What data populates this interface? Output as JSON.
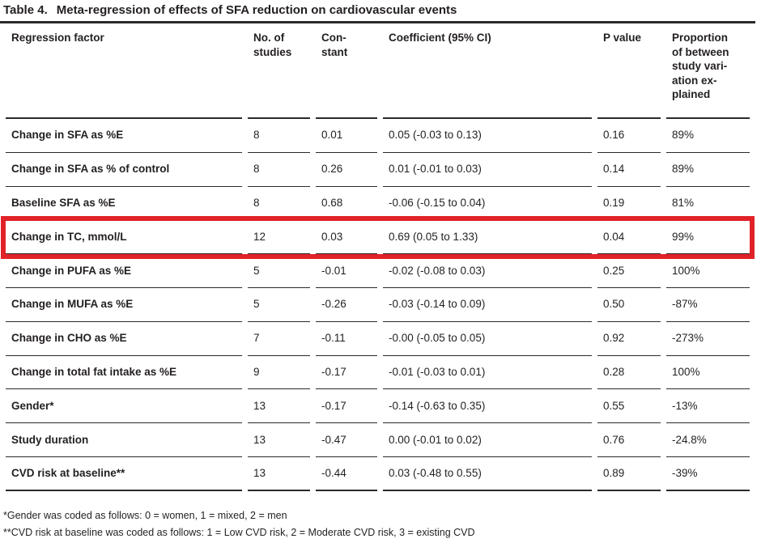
{
  "title": {
    "label": "Table 4.",
    "text": "Meta-regression of effects of SFA reduction on cardiovascular events"
  },
  "table": {
    "headers": [
      "Regression factor",
      "No. of\nstudies",
      "Con-\nstant",
      "Coefficient (95% CI)",
      "P value",
      "Proportion\nof between\nstudy vari-\nation ex-\nplained"
    ],
    "rows": [
      {
        "factor": "Change in SFA as %E",
        "studies": "8",
        "constant": "0.01",
        "coefficient": "0.05 (-0.03 to 0.13)",
        "p": "0.16",
        "variation": "89%",
        "highlighted": false
      },
      {
        "factor": "Change in SFA as % of control",
        "studies": "8",
        "constant": "0.26",
        "coefficient": "0.01 (-0.01 to 0.03)",
        "p": "0.14",
        "variation": "89%",
        "highlighted": false
      },
      {
        "factor": "Baseline SFA as %E",
        "studies": "8",
        "constant": "0.68",
        "coefficient": "-0.06 (-0.15 to 0.04)",
        "p": "0.19",
        "variation": "81%",
        "highlighted": false
      },
      {
        "factor": "Change in TC, mmol/L",
        "studies": "12",
        "constant": "0.03",
        "coefficient": "0.69 (0.05 to 1.33)",
        "p": "0.04",
        "variation": "99%",
        "highlighted": true
      },
      {
        "factor": "Change in PUFA as %E",
        "studies": "5",
        "constant": "-0.01",
        "coefficient": "-0.02 (-0.08 to 0.03)",
        "p": "0.25",
        "variation": "100%",
        "highlighted": false
      },
      {
        "factor": "Change in MUFA as %E",
        "studies": "5",
        "constant": "-0.26",
        "coefficient": "-0.03 (-0.14 to 0.09)",
        "p": "0.50",
        "variation": "-87%",
        "highlighted": false
      },
      {
        "factor": "Change in CHO as %E",
        "studies": "7",
        "constant": "-0.11",
        "coefficient": "-0.00 (-0.05 to 0.05)",
        "p": "0.92",
        "variation": "-273%",
        "highlighted": false
      },
      {
        "factor": "Change in total fat intake as %E",
        "studies": "9",
        "constant": "-0.17",
        "coefficient": "-0.01 (-0.03 to 0.01)",
        "p": "0.28",
        "variation": "100%",
        "highlighted": false
      },
      {
        "factor": "Gender*",
        "studies": "13",
        "constant": "-0.17",
        "coefficient": "-0.14 (-0.63 to 0.35)",
        "p": "0.55",
        "variation": "-13%",
        "highlighted": false
      },
      {
        "factor": "Study duration",
        "studies": "13",
        "constant": "-0.47",
        "coefficient": "0.00 (-0.01 to 0.02)",
        "p": "0.76",
        "variation": "-24.8%",
        "highlighted": false
      },
      {
        "factor": "CVD risk at baseline**",
        "studies": "13",
        "constant": "-0.44",
        "coefficient": "0.03 (-0.48 to 0.55)",
        "p": "0.89",
        "variation": "-39%",
        "highlighted": false
      }
    ]
  },
  "footnotes": [
    "*Gender was coded as follows: 0 = women, 1 = mixed, 2 = men",
    "**CVD risk at baseline was coded as follows: 1 = Low CVD risk, 2 = Moderate CVD risk, 3 = existing CVD"
  ],
  "colors": {
    "text": "#231f20",
    "rule": "#2a2a2a",
    "highlight_border": "#e12228"
  }
}
